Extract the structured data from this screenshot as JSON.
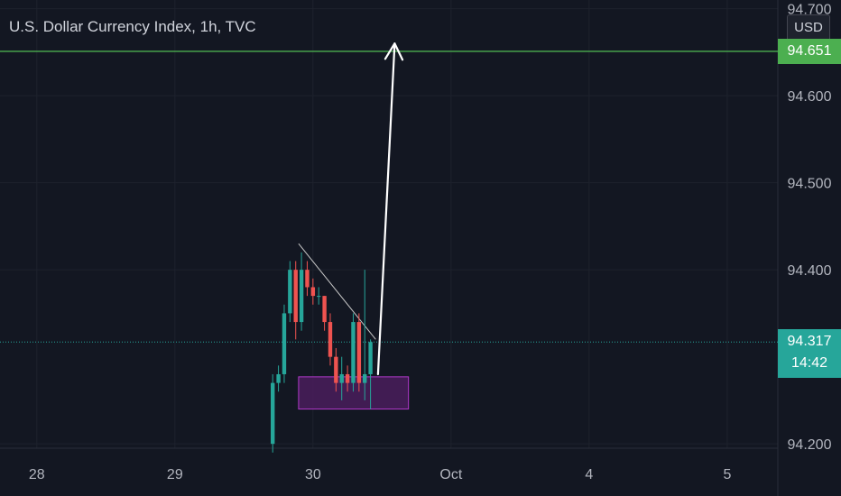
{
  "header": {
    "title": "U.S. Dollar Currency Index, 1h, TVC",
    "currency": "USD"
  },
  "price_labels": {
    "target": "94.651",
    "current": "94.317",
    "countdown": "14:42"
  },
  "colors": {
    "background": "#131722",
    "up": "#26a69a",
    "down": "#ef5350",
    "target_line": "#4caf50",
    "current_line": "#26a69a",
    "zone_fill": "#4a1d5c",
    "zone_border": "#b039c9",
    "arrow": "#ffffff",
    "trendline": "#c8c8c8"
  },
  "chart_data": {
    "type": "candlestick",
    "symbol": "U.S. Dollar Currency Index",
    "interval": "1h",
    "source": "TVC",
    "y_ticks": [
      94.2,
      94.4,
      94.5,
      94.6,
      94.7
    ],
    "y_tick_labels": [
      "94.200",
      "94.400",
      "94.500",
      "94.600",
      "94.700"
    ],
    "ylim": [
      94.195,
      94.71
    ],
    "x_ticks": [
      {
        "label": "28",
        "t": 0
      },
      {
        "label": "29",
        "t": 24
      },
      {
        "label": "30",
        "t": 48
      },
      {
        "label": "Oct",
        "t": 72
      },
      {
        "label": "4",
        "t": 96
      },
      {
        "label": "5",
        "t": 120
      }
    ],
    "xlim": [
      -6.4,
      128.8
    ],
    "candles": [
      {
        "t": 41.0,
        "o": 94.2,
        "h": 94.28,
        "l": 94.19,
        "c": 94.27
      },
      {
        "t": 42.0,
        "o": 94.27,
        "h": 94.29,
        "l": 94.26,
        "c": 94.28
      },
      {
        "t": 43.0,
        "o": 94.28,
        "h": 94.36,
        "l": 94.27,
        "c": 94.35
      },
      {
        "t": 44.0,
        "o": 94.35,
        "h": 94.41,
        "l": 94.34,
        "c": 94.4
      },
      {
        "t": 45.0,
        "o": 94.4,
        "h": 94.41,
        "l": 94.32,
        "c": 94.34
      },
      {
        "t": 46.0,
        "o": 94.34,
        "h": 94.42,
        "l": 94.33,
        "c": 94.4
      },
      {
        "t": 47.0,
        "o": 94.4,
        "h": 94.41,
        "l": 94.37,
        "c": 94.38
      },
      {
        "t": 48.0,
        "o": 94.38,
        "h": 94.39,
        "l": 94.36,
        "c": 94.37
      },
      {
        "t": 49.0,
        "o": 94.37,
        "h": 94.38,
        "l": 94.36,
        "c": 94.37
      },
      {
        "t": 50.0,
        "o": 94.37,
        "h": 94.37,
        "l": 94.33,
        "c": 94.34
      },
      {
        "t": 51.0,
        "o": 94.34,
        "h": 94.35,
        "l": 94.29,
        "c": 94.3
      },
      {
        "t": 52.0,
        "o": 94.3,
        "h": 94.31,
        "l": 94.26,
        "c": 94.27
      },
      {
        "t": 53.0,
        "o": 94.27,
        "h": 94.3,
        "l": 94.25,
        "c": 94.28
      },
      {
        "t": 54.0,
        "o": 94.28,
        "h": 94.29,
        "l": 94.26,
        "c": 94.27
      },
      {
        "t": 55.0,
        "o": 94.27,
        "h": 94.35,
        "l": 94.26,
        "c": 94.34
      },
      {
        "t": 56.0,
        "o": 94.34,
        "h": 94.35,
        "l": 94.26,
        "c": 94.27
      },
      {
        "t": 57.0,
        "o": 94.27,
        "h": 94.4,
        "l": 94.25,
        "c": 94.28
      },
      {
        "t": 58.0,
        "o": 94.28,
        "h": 94.32,
        "l": 94.24,
        "c": 94.317
      }
    ],
    "target_price": 94.651,
    "current_price": 94.317,
    "annotations": {
      "zone": {
        "t1": 45.5,
        "t2": 64.6,
        "p1": 94.277,
        "p2": 94.24
      },
      "trendline": {
        "t1": 45.5,
        "p1": 94.43,
        "t2": 58.9,
        "p2": 94.32
      },
      "arrow": {
        "t1": 59.3,
        "p1": 94.28,
        "t2": 62.2,
        "p2": 94.66
      }
    }
  }
}
